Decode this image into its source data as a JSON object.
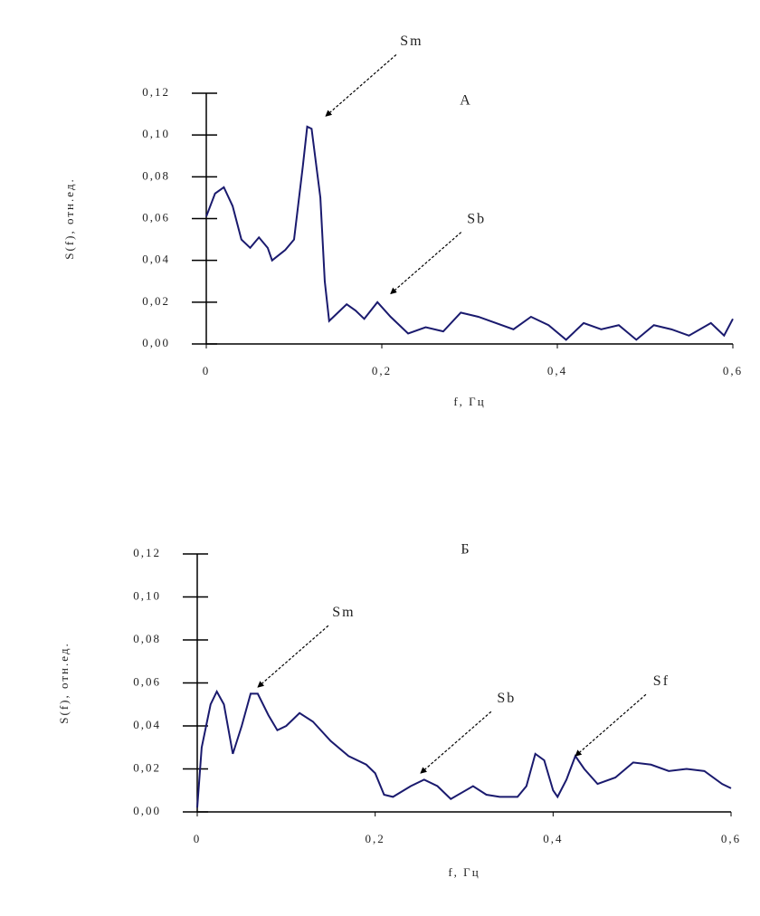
{
  "chart_data": [
    {
      "type": "line",
      "label": "А",
      "xlabel": "f, Гц",
      "ylabel": "S(f), отн.ед.",
      "x": [
        0,
        0.01,
        0.02,
        0.03,
        0.04,
        0.05,
        0.06,
        0.07,
        0.075,
        0.09,
        0.1,
        0.11,
        0.115,
        0.12,
        0.13,
        0.135,
        0.14,
        0.15,
        0.16,
        0.17,
        0.18,
        0.195,
        0.21,
        0.23,
        0.25,
        0.27,
        0.29,
        0.31,
        0.35,
        0.37,
        0.39,
        0.41,
        0.43,
        0.45,
        0.47,
        0.49,
        0.51,
        0.53,
        0.55,
        0.575,
        0.59,
        0.6
      ],
      "series": [
        {
          "color": "#1a1a6e",
          "values": [
            0.061,
            0.072,
            0.075,
            0.066,
            0.05,
            0.046,
            0.051,
            0.046,
            0.04,
            0.045,
            0.05,
            0.085,
            0.104,
            0.103,
            0.07,
            0.03,
            0.011,
            0.015,
            0.019,
            0.016,
            0.012,
            0.02,
            0.013,
            0.005,
            0.008,
            0.006,
            0.015,
            0.013,
            0.007,
            0.013,
            0.009,
            0.002,
            0.01,
            0.007,
            0.009,
            0.002,
            0.009,
            0.007,
            0.004,
            0.01,
            0.004,
            0.012
          ]
        }
      ],
      "xlim": [
        0,
        0.6
      ],
      "ylim": [
        0,
        0.12
      ],
      "xticks": [
        0,
        {
          "value": 0.2,
          "label": "0,2"
        },
        {
          "value": 0.4,
          "label": "0,4"
        },
        {
          "value": 0.6,
          "label": "0,6"
        }
      ],
      "yticks": [
        {
          "value": 0,
          "label": "0,00"
        },
        {
          "value": 0.02,
          "label": "0,02"
        },
        {
          "value": 0.04,
          "label": "0,04"
        },
        {
          "value": 0.06,
          "label": "0,06"
        },
        {
          "value": 0.08,
          "label": "0,08"
        },
        {
          "value": 0.1,
          "label": "0,10"
        },
        {
          "value": 0.12,
          "label": "0,12"
        }
      ],
      "annotations": [
        {
          "text": "Sm",
          "x": 0.136,
          "y": 0.109
        },
        {
          "text": "Sb",
          "x": 0.21,
          "y": 0.024
        }
      ]
    },
    {
      "type": "line",
      "label": "Б",
      "xlabel": "f, Гц",
      "ylabel": "S(f), отн.ед.",
      "x": [
        0,
        0.005,
        0.015,
        0.022,
        0.03,
        0.04,
        0.05,
        0.06,
        0.068,
        0.08,
        0.09,
        0.1,
        0.115,
        0.13,
        0.15,
        0.17,
        0.19,
        0.2,
        0.21,
        0.22,
        0.24,
        0.255,
        0.27,
        0.285,
        0.31,
        0.325,
        0.34,
        0.36,
        0.37,
        0.38,
        0.39,
        0.4,
        0.405,
        0.415,
        0.425,
        0.435,
        0.45,
        0.47,
        0.49,
        0.51,
        0.53,
        0.55,
        0.57,
        0.59,
        0.6
      ],
      "series": [
        {
          "color": "#1a1a6e",
          "values": [
            0.002,
            0.03,
            0.05,
            0.056,
            0.05,
            0.027,
            0.04,
            0.055,
            0.055,
            0.045,
            0.038,
            0.04,
            0.046,
            0.042,
            0.033,
            0.026,
            0.022,
            0.018,
            0.008,
            0.007,
            0.012,
            0.015,
            0.012,
            0.006,
            0.012,
            0.008,
            0.007,
            0.007,
            0.012,
            0.027,
            0.024,
            0.01,
            0.007,
            0.015,
            0.026,
            0.02,
            0.013,
            0.016,
            0.023,
            0.022,
            0.019,
            0.02,
            0.019,
            0.013,
            0.011
          ]
        }
      ],
      "xlim": [
        0,
        0.6
      ],
      "ylim": [
        0,
        0.12
      ],
      "xticks": [
        0,
        {
          "value": 0.2,
          "label": "0,2"
        },
        {
          "value": 0.4,
          "label": "0,4"
        },
        {
          "value": 0.6,
          "label": "0,6"
        }
      ],
      "yticks": [
        {
          "value": 0,
          "label": "0,00"
        },
        {
          "value": 0.02,
          "label": "0,02"
        },
        {
          "value": 0.04,
          "label": "0,04"
        },
        {
          "value": 0.06,
          "label": "0,06"
        },
        {
          "value": 0.08,
          "label": "0,08"
        },
        {
          "value": 0.1,
          "label": "0,10"
        },
        {
          "value": 0.12,
          "label": "0,12"
        }
      ],
      "annotations": [
        {
          "text": "Sm",
          "x": 0.068,
          "y": 0.058
        },
        {
          "text": "Sb",
          "x": 0.251,
          "y": 0.018
        },
        {
          "text": "Sf",
          "x": 0.425,
          "y": 0.026
        }
      ]
    }
  ]
}
